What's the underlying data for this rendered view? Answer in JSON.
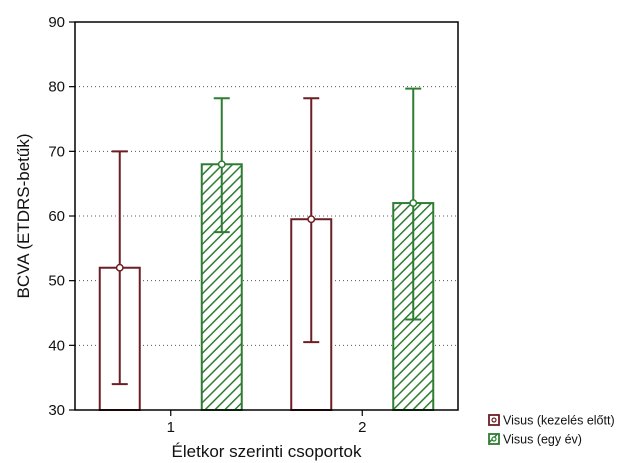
{
  "chart_data": {
    "type": "bar",
    "xlabel": "Életkor szerinti csoportok",
    "ylabel": "BCVA (ETDRS-betűk)",
    "categories": [
      "1",
      "2"
    ],
    "ylim": [
      30,
      90
    ],
    "yticks": [
      30,
      40,
      50,
      60,
      70,
      80,
      90
    ],
    "grid": true,
    "legend_position": "bottom-right",
    "series": [
      {
        "name": "Visus (kezelés előtt)",
        "color": "#6b1f24",
        "fill": "none",
        "values": [
          52,
          59.5
        ],
        "error_low": [
          34,
          40.5
        ],
        "error_high": [
          70,
          78.2
        ]
      },
      {
        "name": "Visus (egy év)",
        "color": "#2e7d32",
        "fill": "hatched",
        "values": [
          68,
          62
        ],
        "error_low": [
          57.5,
          44
        ],
        "error_high": [
          78.2,
          79.7
        ]
      }
    ]
  }
}
